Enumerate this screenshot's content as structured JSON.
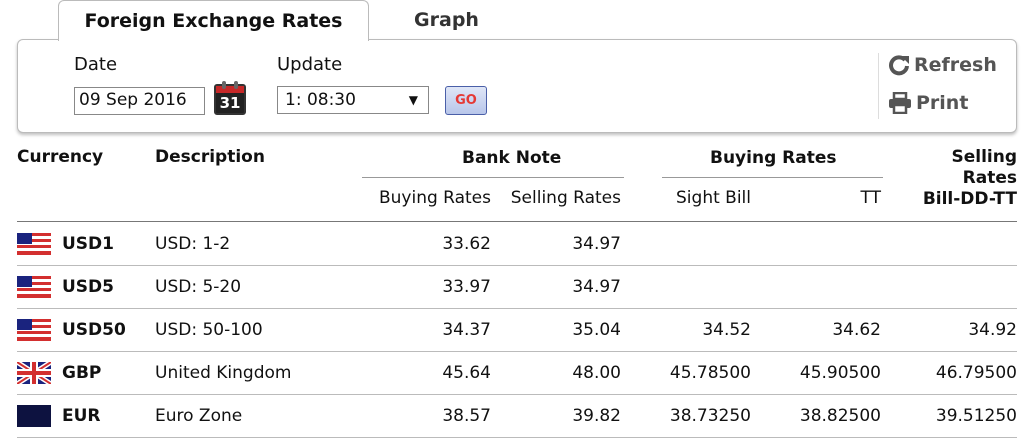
{
  "tabs": [
    {
      "label": "Foreign Exchange Rates",
      "active": true
    },
    {
      "label": "Graph",
      "active": false
    }
  ],
  "form": {
    "date_label": "Date",
    "date_value": "09 Sep 2016",
    "calendar_day": "31",
    "update_label": "Update",
    "update_value": "1: 08:30",
    "go_label": "GO"
  },
  "tools": {
    "refresh_label": "Refresh",
    "print_label": "Print"
  },
  "table": {
    "headers": {
      "currency": "Currency",
      "description": "Description",
      "bank_note": "Bank Note",
      "buying_rates": "Buying Rates",
      "selling_rates_1": "Selling",
      "selling_rates_2": "Rates",
      "selling_rates_3": "Bill-DD-TT"
    },
    "subheaders": {
      "bn_buying": "Buying Rates",
      "bn_selling": "Selling Rates",
      "sight_bill": "Sight Bill",
      "tt": "TT"
    },
    "rows": [
      {
        "flag": "us-flag-icon",
        "code": "USD1",
        "description": "USD: 1-2",
        "bn_buy": "33.62",
        "bn_sell": "34.97",
        "sight_bill": "",
        "tt": "",
        "selling": ""
      },
      {
        "flag": "us-flag-icon",
        "code": "USD5",
        "description": "USD: 5-20",
        "bn_buy": "33.97",
        "bn_sell": "34.97",
        "sight_bill": "",
        "tt": "",
        "selling": ""
      },
      {
        "flag": "us-flag-icon",
        "code": "USD50",
        "description": "USD: 50-100",
        "bn_buy": "34.37",
        "bn_sell": "35.04",
        "sight_bill": "34.52",
        "tt": "34.62",
        "selling": "34.92"
      },
      {
        "flag": "uk-flag-icon",
        "code": "GBP",
        "description": "United Kingdom",
        "bn_buy": "45.64",
        "bn_sell": "48.00",
        "sight_bill": "45.78500",
        "tt": "45.90500",
        "selling": "46.79500"
      },
      {
        "flag": "eu-flag-icon",
        "code": "EUR",
        "description": "Euro Zone",
        "bn_buy": "38.57",
        "bn_sell": "39.82",
        "sight_bill": "38.73250",
        "tt": "38.82500",
        "selling": "39.51250"
      }
    ]
  },
  "colors": {
    "flag_red": "#d32f2f",
    "flag_blue": "#1a237e",
    "go_text": "#e53935"
  }
}
